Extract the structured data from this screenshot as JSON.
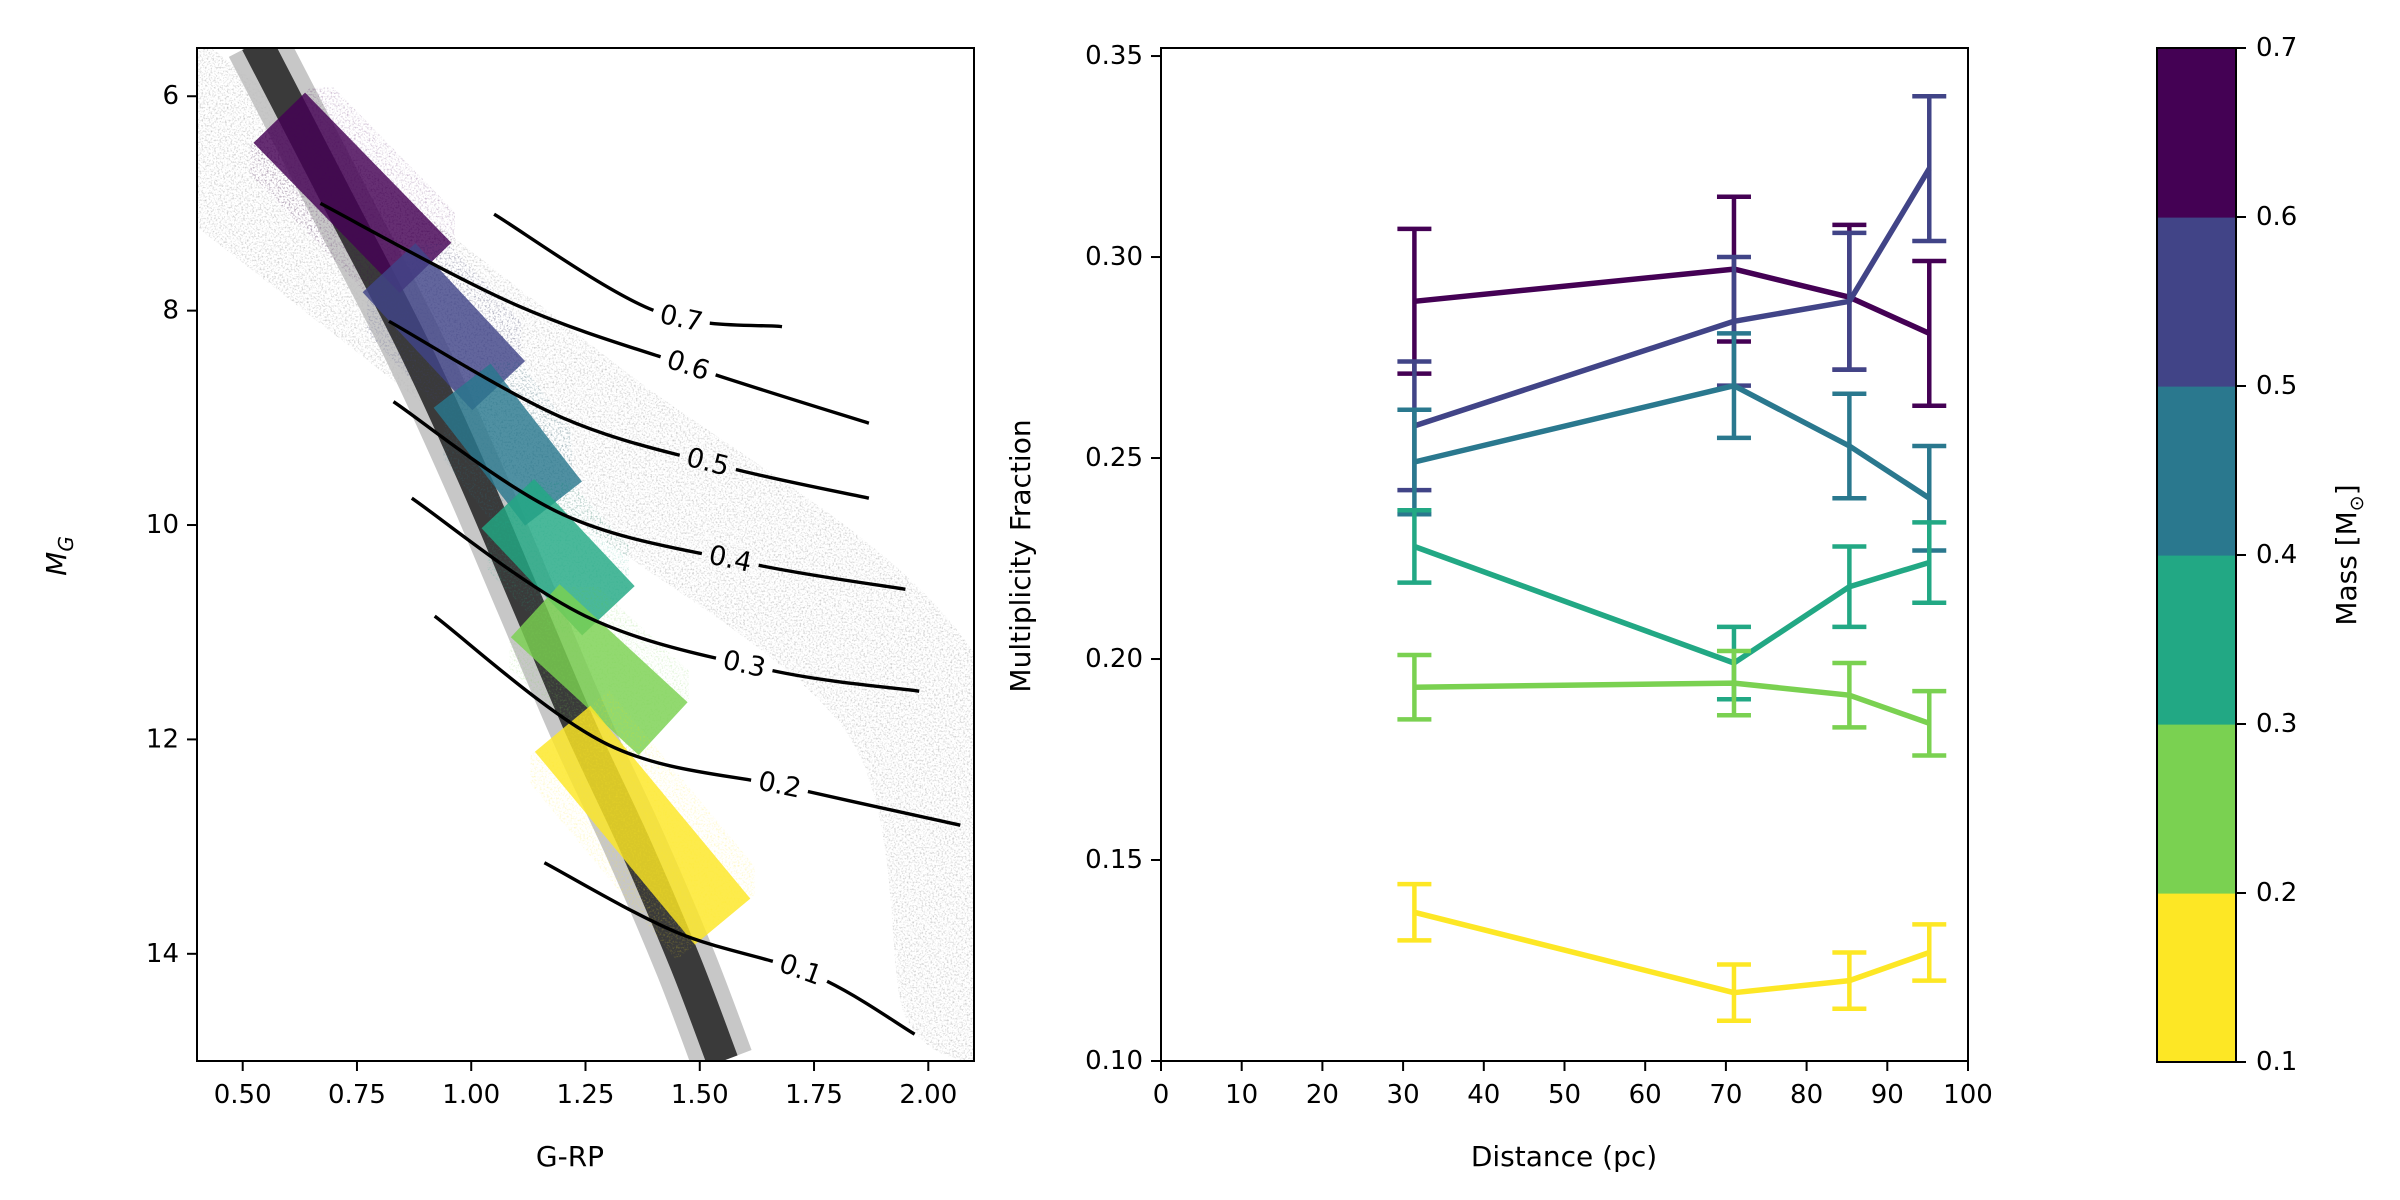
{
  "chart_data": [
    {
      "type": "scatter",
      "subtype": "color-magnitude density with mass isochrones",
      "xlabel": "G-RP",
      "ylabel": "M",
      "ylabel_subscript": "G",
      "xlim": [
        0.4,
        2.1
      ],
      "ylim": [
        15,
        5.55
      ],
      "y_inverted": true,
      "xticks": [
        0.5,
        0.75,
        1.0,
        1.25,
        1.5,
        1.75,
        2.0
      ],
      "xtick_labels": [
        "0.50",
        "0.75",
        "1.00",
        "1.25",
        "1.50",
        "1.75",
        "2.00"
      ],
      "yticks": [
        6,
        8,
        10,
        12,
        14
      ],
      "ytick_labels": [
        "6",
        "8",
        "10",
        "12",
        "14"
      ],
      "main_sequence": [
        [
          0.53,
          5.5
        ],
        [
          0.7,
          6.9
        ],
        [
          0.87,
          8.3
        ],
        [
          1.0,
          9.5
        ],
        [
          1.12,
          10.7
        ],
        [
          1.24,
          11.9
        ],
        [
          1.36,
          13.0
        ],
        [
          1.47,
          14.1
        ],
        [
          1.55,
          15.0
        ]
      ],
      "colored_segments": [
        {
          "mass_range": [
            0.6,
            0.7
          ],
          "color": "#440154",
          "x": [
            0.58,
            0.9
          ],
          "y": [
            6.2,
            7.6
          ]
        },
        {
          "mass_range": [
            0.5,
            0.6
          ],
          "color": "#414487",
          "x": [
            0.82,
            1.06
          ],
          "y": [
            7.6,
            8.7
          ]
        },
        {
          "mass_range": [
            0.4,
            0.5
          ],
          "color": "#2a788e",
          "x": [
            0.98,
            1.18
          ],
          "y": [
            8.7,
            9.8
          ]
        },
        {
          "mass_range": [
            0.3,
            0.4
          ],
          "color": "#22a884",
          "x": [
            1.08,
            1.3
          ],
          "y": [
            9.8,
            10.8
          ]
        },
        {
          "mass_range": [
            0.2,
            0.3
          ],
          "color": "#7ad151",
          "x": [
            1.14,
            1.42
          ],
          "y": [
            10.8,
            11.9
          ]
        },
        {
          "mass_range": [
            0.1,
            0.2
          ],
          "color": "#fde725",
          "x": [
            1.2,
            1.55
          ],
          "y": [
            11.9,
            13.7
          ]
        }
      ],
      "contours": [
        {
          "label": "0.7",
          "points": [
            [
              1.05,
              7.1
            ],
            [
              1.4,
              8.0
            ],
            [
              1.68,
              8.15
            ]
          ]
        },
        {
          "label": "0.6",
          "points": [
            [
              0.67,
              7.0
            ],
            [
              1.1,
              7.95
            ],
            [
              1.5,
              8.55
            ],
            [
              1.87,
              9.05
            ]
          ]
        },
        {
          "label": "0.5",
          "points": [
            [
              0.82,
              8.1
            ],
            [
              1.2,
              9.0
            ],
            [
              1.55,
              9.45
            ],
            [
              1.87,
              9.75
            ]
          ]
        },
        {
          "label": "0.4",
          "points": [
            [
              0.83,
              8.85
            ],
            [
              1.2,
              9.9
            ],
            [
              1.6,
              10.35
            ],
            [
              1.95,
              10.6
            ]
          ]
        },
        {
          "label": "0.3",
          "points": [
            [
              0.87,
              9.75
            ],
            [
              1.25,
              10.85
            ],
            [
              1.65,
              11.35
            ],
            [
              1.98,
              11.55
            ]
          ]
        },
        {
          "label": "0.2",
          "points": [
            [
              0.92,
              10.85
            ],
            [
              1.3,
              12.05
            ],
            [
              1.7,
              12.45
            ],
            [
              2.07,
              12.8
            ]
          ]
        },
        {
          "label": "0.1",
          "points": [
            [
              1.16,
              13.15
            ],
            [
              1.45,
              13.8
            ],
            [
              1.75,
              14.2
            ],
            [
              1.97,
              14.75
            ]
          ]
        }
      ]
    },
    {
      "type": "line",
      "xlabel": "Distance (pc)",
      "ylabel": "Multiplicity Fraction",
      "xlim": [
        0,
        100
      ],
      "ylim": [
        0.1,
        0.352
      ],
      "xticks": [
        0,
        10,
        20,
        30,
        40,
        50,
        60,
        70,
        80,
        90,
        100
      ],
      "yticks": [
        0.1,
        0.15,
        0.2,
        0.25,
        0.3,
        0.35
      ],
      "ytick_labels": [
        "0.10",
        "0.15",
        "0.20",
        "0.25",
        "0.30",
        "0.35"
      ],
      "x": [
        31.4,
        71.0,
        85.3,
        95.2
      ],
      "series": [
        {
          "mass_range": [
            0.6,
            0.7
          ],
          "color": "#440154",
          "values": [
            0.289,
            0.297,
            0.29,
            0.281
          ],
          "errors": [
            0.018,
            0.018,
            0.018,
            0.018
          ]
        },
        {
          "mass_range": [
            0.5,
            0.6
          ],
          "color": "#414487",
          "values": [
            0.258,
            0.284,
            0.289,
            0.322
          ],
          "errors": [
            0.016,
            0.016,
            0.017,
            0.018
          ]
        },
        {
          "mass_range": [
            0.4,
            0.5
          ],
          "color": "#2a788e",
          "values": [
            0.249,
            0.268,
            0.253,
            0.24
          ],
          "errors": [
            0.013,
            0.013,
            0.013,
            0.013
          ]
        },
        {
          "mass_range": [
            0.3,
            0.4
          ],
          "color": "#22a884",
          "values": [
            0.228,
            0.199,
            0.218,
            0.224
          ],
          "errors": [
            0.009,
            0.009,
            0.01,
            0.01
          ]
        },
        {
          "mass_range": [
            0.2,
            0.3
          ],
          "color": "#7ad151",
          "values": [
            0.193,
            0.194,
            0.191,
            0.184
          ],
          "errors": [
            0.008,
            0.008,
            0.008,
            0.008
          ]
        },
        {
          "mass_range": [
            0.1,
            0.2
          ],
          "color": "#fde725",
          "values": [
            0.137,
            0.117,
            0.12,
            0.127
          ],
          "errors": [
            0.007,
            0.007,
            0.007,
            0.007
          ]
        }
      ]
    },
    {
      "type": "colorbar",
      "label": "Mass [M",
      "label_symbol": "⊙",
      "label_close": "]",
      "range": [
        0.1,
        0.7
      ],
      "ticks": [
        "0.1",
        "0.2",
        "0.3",
        "0.4",
        "0.5",
        "0.6",
        "0.7"
      ],
      "colors": [
        "#fde725",
        "#7ad151",
        "#22a884",
        "#2a788e",
        "#414487",
        "#440154"
      ]
    }
  ]
}
